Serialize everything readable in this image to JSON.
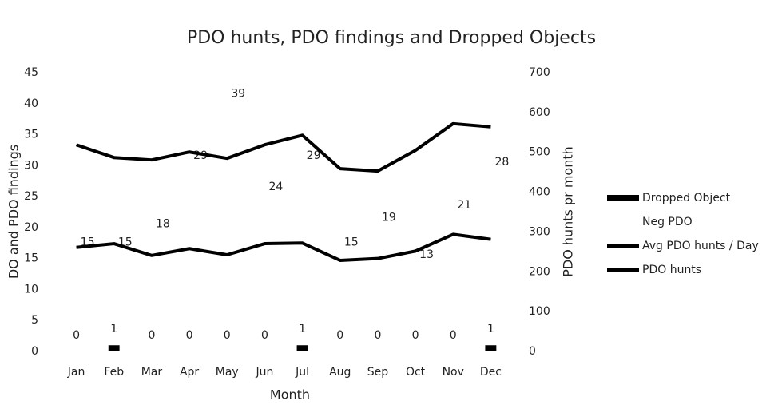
{
  "chart_data": {
    "type": "combo",
    "title": "PDO hunts, PDO findings and Dropped Objects",
    "x_label": "Month",
    "y_label": "DO and PDO findings",
    "y2_label": "PDO hunts pr month",
    "categories": [
      "Jan",
      "Feb",
      "Mar",
      "Apr",
      "May",
      "Jun",
      "Jul",
      "Aug",
      "Sep",
      "Oct",
      "Nov",
      "Dec"
    ],
    "ylim": [
      0,
      45
    ],
    "yticks": [
      0,
      5,
      10,
      15,
      20,
      25,
      30,
      35,
      40,
      45
    ],
    "y2lim": [
      0,
      700
    ],
    "y2ticks": [
      0,
      100,
      200,
      300,
      400,
      500,
      600,
      700
    ],
    "legend": "right",
    "series": [
      {
        "name": "Dropped Object",
        "type": "bar",
        "color": "#000000",
        "values": [
          0,
          1,
          0,
          0,
          0,
          0,
          1,
          0,
          0,
          0,
          0,
          1
        ]
      },
      {
        "name": "Neg PDO",
        "type": "bar",
        "color": "#ffffff",
        "values": [
          15,
          15,
          18,
          29,
          39,
          24,
          29,
          15,
          19,
          13,
          21,
          28
        ]
      },
      {
        "name": "Avg PDO hunts / Day",
        "type": "line",
        "color": "#000000",
        "values": [
          16.8,
          17.4,
          15.5,
          16.6,
          15.6,
          17.4,
          17.5,
          14.7,
          15.0,
          16.2,
          18.9,
          18.1
        ]
      },
      {
        "name": "PDO hunts",
        "type": "line",
        "axis": "y2",
        "color": "#000000",
        "values": [
          519,
          487,
          481,
          501,
          485,
          519,
          543,
          459,
          453,
          505,
          572,
          564
        ]
      }
    ]
  }
}
